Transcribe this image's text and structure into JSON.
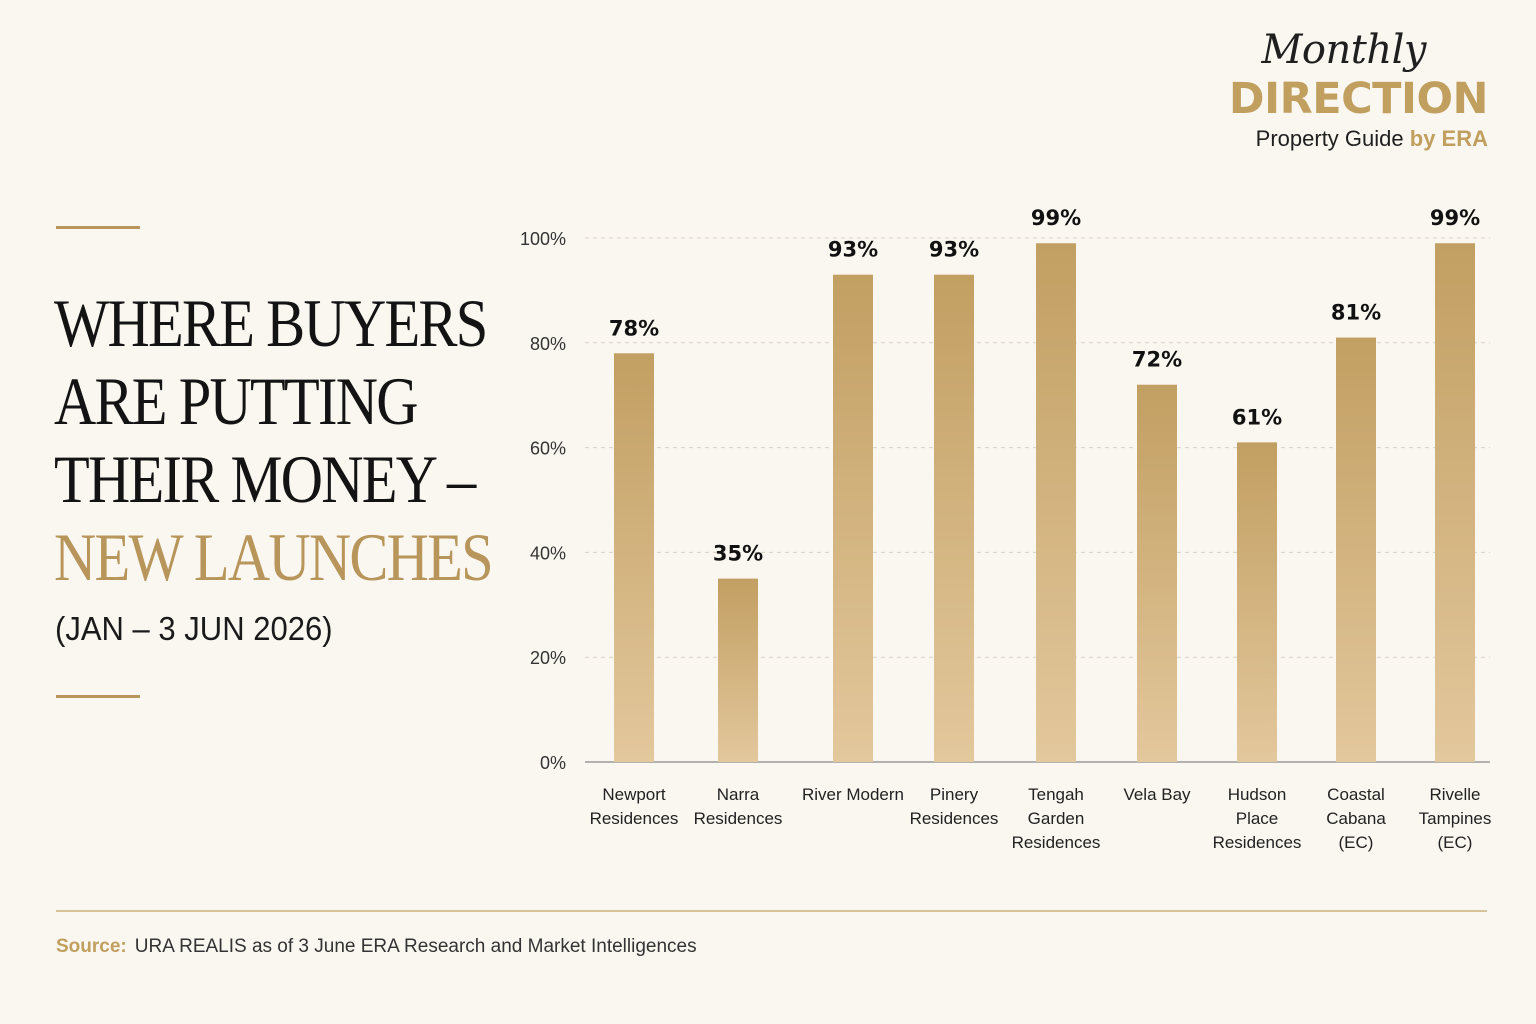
{
  "brand": {
    "script": "Monthly",
    "main": "DIRECTION",
    "sub": "Property Guide",
    "by": "by ERA"
  },
  "title": {
    "lines": [
      "WHERE BUYERS",
      "ARE PUTTING",
      "THEIR MONEY –"
    ],
    "accent": "NEW LAUNCHES",
    "subtitle": "(JAN – 3 JUN 2026)"
  },
  "colors": {
    "background": "#faf7f1",
    "accent": "#b8955a",
    "bar_top": "#c29f62",
    "bar_bottom": "#e3c89d",
    "text": "#131313"
  },
  "chart_data": {
    "type": "bar",
    "categories": [
      [
        "Newport",
        "Residences"
      ],
      [
        "Narra",
        "Residences"
      ],
      [
        "River Modern"
      ],
      [
        "Pinery",
        "Residences"
      ],
      [
        "Tengah",
        "Garden",
        "Residences"
      ],
      [
        "Vela Bay"
      ],
      [
        "Hudson",
        "Place",
        "Residences"
      ],
      [
        "Coastal",
        "Cabana",
        "(EC)"
      ],
      [
        "Rivelle",
        "Tampines",
        "(EC)"
      ]
    ],
    "values": [
      78,
      35,
      93,
      93,
      99,
      72,
      61,
      81,
      99
    ],
    "value_labels": [
      "78%",
      "35%",
      "93%",
      "93%",
      "99%",
      "72%",
      "61%",
      "81%",
      "99%"
    ],
    "ylim": [
      0,
      100
    ],
    "yticks": [
      0,
      20,
      40,
      60,
      80,
      100
    ],
    "ytick_labels": [
      "0%",
      "20%",
      "40%",
      "60%",
      "80%",
      "100%"
    ],
    "grid": true,
    "legend": "none"
  },
  "footer": {
    "source_label": "Source:",
    "source_text": "URA REALIS as of 3 June ERA Research and Market Intelligences"
  }
}
